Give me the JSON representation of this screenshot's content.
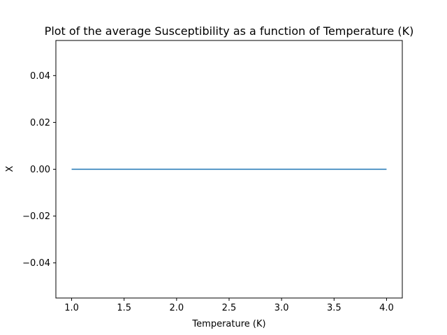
{
  "chart_data": {
    "type": "line",
    "title": "Plot of the average Susceptibility as a function of Temperature (K)",
    "xlabel": "Temperature (K)",
    "ylabel": "X",
    "xlim": [
      0.85,
      4.15
    ],
    "ylim": [
      -0.055,
      0.055
    ],
    "x_ticks": [
      1.0,
      1.5,
      2.0,
      2.5,
      3.0,
      3.5,
      4.0
    ],
    "x_tick_labels": [
      "1.0",
      "1.5",
      "2.0",
      "2.5",
      "3.0",
      "3.5",
      "4.0"
    ],
    "y_ticks": [
      -0.04,
      -0.02,
      0.0,
      0.02,
      0.04
    ],
    "y_tick_labels": [
      "−0.04",
      "−0.02",
      "0.00",
      "0.02",
      "0.04"
    ],
    "grid": false,
    "series": [
      {
        "color": "#1f77b4",
        "x": [
          1.0,
          4.0
        ],
        "y": [
          0.0,
          0.0
        ]
      }
    ]
  }
}
